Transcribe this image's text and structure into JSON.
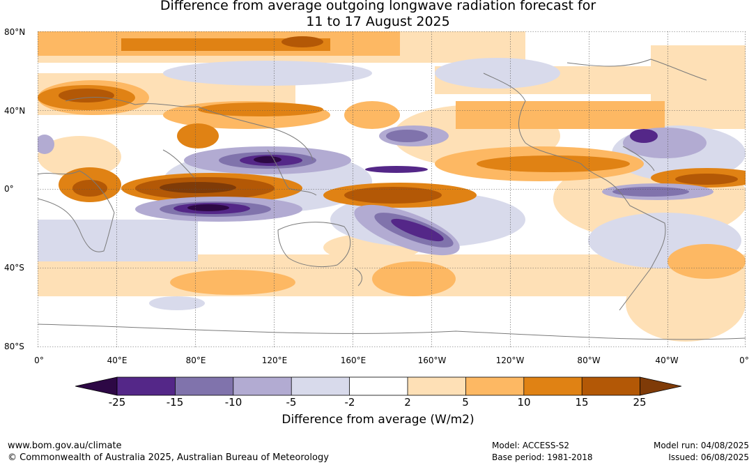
{
  "title": {
    "line1": "Difference from average outgoing longwave radiation forecast for",
    "line2": "11 to 17 August 2025"
  },
  "map": {
    "lat_labels": [
      "80°N",
      "40°N",
      "0°",
      "40°S",
      "80°S"
    ],
    "lon_labels": [
      "0°",
      "40°E",
      "80°E",
      "120°E",
      "160°E",
      "160°W",
      "120°W",
      "80°W",
      "40°W",
      "0°"
    ],
    "colors": {
      "ocean_zero": "#ffffff",
      "coastline": "#7a7a7a",
      "gridline": "#555555"
    }
  },
  "colorbar": {
    "label": "Difference from average (W/m2)",
    "ticks": [
      "-25",
      "-15",
      "-10",
      "-5",
      "-2",
      "2",
      "5",
      "10",
      "15",
      "25"
    ],
    "colors": [
      "#2d0845",
      "#542788",
      "#8073ac",
      "#b2abd2",
      "#d8daeb",
      "#ffffff",
      "#fee0b6",
      "#fdb863",
      "#e08214",
      "#b35806",
      "#7f3b08"
    ]
  },
  "footer": {
    "website": "www.bom.gov.au/climate",
    "copyright": "© Commonwealth of Australia 2025, Australian Bureau of Meteorology",
    "model": "Model: ACCESS-S2",
    "base_period": "Base period: 1981-2018",
    "model_run": "Model run: 04/08/2025",
    "issued": "Issued: 06/08/2025"
  }
}
